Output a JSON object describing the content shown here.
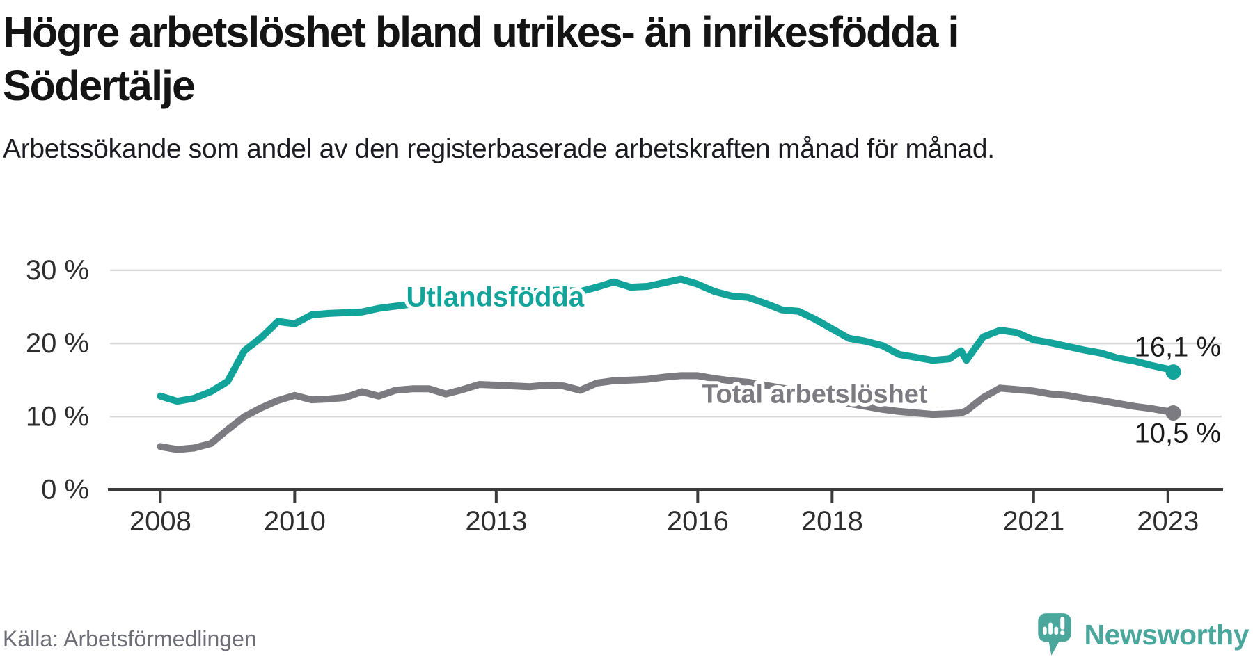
{
  "header": {
    "title": "Högre arbetslöshet bland utrikes- än inrikesfödda i Södertälje",
    "subtitle": "Arbetssökande som andel av den registerbaserade arbetskraften månad för månad."
  },
  "footer": {
    "source": "Källa: Arbetsförmedlingen",
    "logo_text": "Newsworthy"
  },
  "colors": {
    "accent_teal": "#12a39a",
    "series_gray": "#7b7b81",
    "logo_teal": "#4ba69c",
    "grid": "#d9d9d9",
    "axis": "#3b3b3b",
    "tick_text": "#2e2e2e",
    "end_label_text": "#1a1a1a"
  },
  "chart_data": {
    "type": "line",
    "title": "Högre arbetslöshet bland utrikes- än inrikesfödda i Södertälje",
    "xlabel": "",
    "ylabel": "Arbetssökande som andel av den registerbaserade arbetskraften",
    "grid": true,
    "xlim": [
      2007.25,
      2023.8
    ],
    "ylim": [
      0,
      35.5
    ],
    "xticks": {
      "values": [
        2008,
        2010,
        2013,
        2016,
        2018,
        2021,
        2023
      ],
      "labels": [
        "2008",
        "2010",
        "2013",
        "2016",
        "2018",
        "2021",
        "2023"
      ]
    },
    "yticks": {
      "values": [
        0,
        10,
        20,
        30
      ],
      "labels": [
        "0 %",
        "10 %",
        "20 %",
        "30 %"
      ]
    },
    "x": [
      2008.0,
      2008.25,
      2008.5,
      2008.75,
      2009.0,
      2009.25,
      2009.5,
      2009.75,
      2010.0,
      2010.25,
      2010.5,
      2010.75,
      2011.0,
      2011.25,
      2011.5,
      2011.75,
      2012.0,
      2012.25,
      2012.5,
      2012.75,
      2013.0,
      2013.25,
      2013.5,
      2013.75,
      2014.0,
      2014.25,
      2014.5,
      2014.75,
      2015.0,
      2015.25,
      2015.5,
      2015.75,
      2016.0,
      2016.25,
      2016.5,
      2016.75,
      2017.0,
      2017.25,
      2017.5,
      2017.75,
      2018.0,
      2018.25,
      2018.5,
      2018.75,
      2019.0,
      2019.25,
      2019.5,
      2019.75,
      2019.92,
      2020.0,
      2020.25,
      2020.5,
      2020.75,
      2021.0,
      2021.25,
      2021.5,
      2021.75,
      2022.0,
      2022.25,
      2022.5,
      2022.75,
      2023.0,
      2023.08
    ],
    "series": [
      {
        "name": "Utlandsfödda",
        "color_key": "accent_teal",
        "end_label": "16,1 %",
        "end_value": 16.1,
        "end_label_pos": {
          "x": 2022.5,
          "y": 19.5
        },
        "label_pos": {
          "x": 2011.66,
          "y": 26.35,
          "size": "normal"
        },
        "values": [
          12.8,
          12.1,
          12.5,
          13.4,
          14.8,
          19.0,
          20.8,
          23.0,
          22.7,
          23.9,
          24.1,
          24.2,
          24.3,
          24.8,
          25.1,
          25.4,
          25.8,
          25.9,
          26.1,
          26.4,
          26.6,
          26.8,
          27.0,
          27.2,
          27.3,
          27.1,
          27.7,
          28.4,
          27.7,
          27.8,
          28.3,
          28.8,
          28.1,
          27.1,
          26.5,
          26.3,
          25.5,
          24.6,
          24.4,
          23.3,
          22.0,
          20.7,
          20.3,
          19.7,
          18.5,
          18.1,
          17.7,
          17.9,
          19.0,
          17.7,
          20.9,
          21.8,
          21.5,
          20.5,
          20.1,
          19.6,
          19.1,
          18.7,
          18.0,
          17.6,
          17.0,
          16.5,
          16.1
        ]
      },
      {
        "name": "Total arbetslöshet",
        "color_key": "series_gray",
        "end_label": "10,5 %",
        "end_value": 10.5,
        "end_label_pos": {
          "x": 2022.5,
          "y": 7.7
        },
        "label_pos": {
          "x": 2016.06,
          "y": 13.0,
          "size": "small"
        },
        "values": [
          5.9,
          5.5,
          5.7,
          6.3,
          8.2,
          10.0,
          11.2,
          12.2,
          12.9,
          12.3,
          12.4,
          12.6,
          13.4,
          12.8,
          13.6,
          13.8,
          13.8,
          13.1,
          13.7,
          14.4,
          14.3,
          14.2,
          14.1,
          14.3,
          14.2,
          13.6,
          14.6,
          14.9,
          15.0,
          15.1,
          15.4,
          15.6,
          15.6,
          15.2,
          14.9,
          14.7,
          14.3,
          13.9,
          13.6,
          13.0,
          12.4,
          11.8,
          11.4,
          11.0,
          10.7,
          10.5,
          10.3,
          10.4,
          10.5,
          10.8,
          12.6,
          13.9,
          13.7,
          13.5,
          13.1,
          12.9,
          12.5,
          12.2,
          11.8,
          11.4,
          11.1,
          10.7,
          10.5
        ]
      }
    ]
  }
}
